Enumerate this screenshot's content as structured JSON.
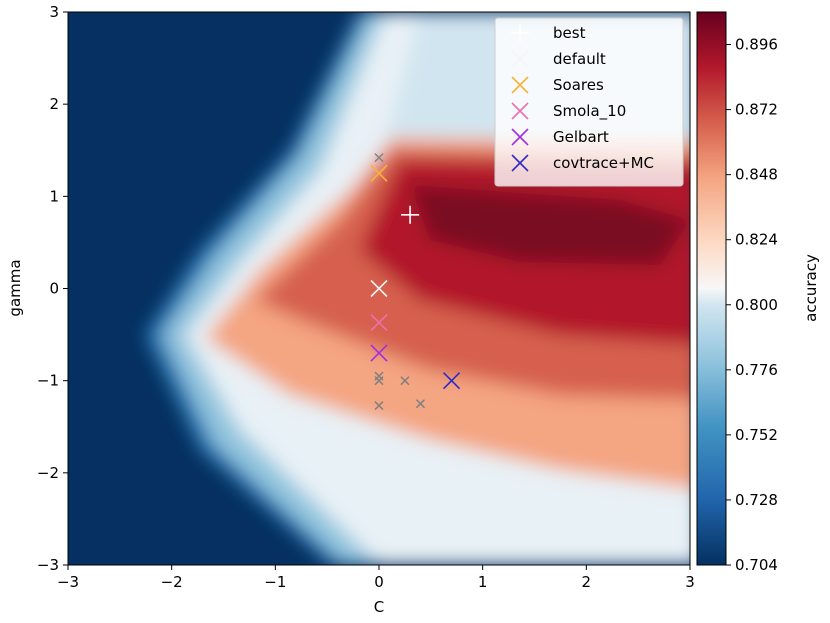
{
  "chart_data": {
    "type": "contour",
    "xlabel": "C",
    "ylabel": "gamma",
    "xlim": [
      -3,
      3
    ],
    "ylim": [
      -3,
      3
    ],
    "xticks": [
      "−3",
      "−2",
      "−1",
      "0",
      "1",
      "2",
      "3"
    ],
    "yticks": [
      "−3",
      "−2",
      "−1",
      "0",
      "1",
      "2",
      "3"
    ],
    "colorbar": {
      "label": "accuracy",
      "min": 0.704,
      "max": 0.908,
      "ticks": [
        "0.704",
        "0.728",
        "0.752",
        "0.776",
        "0.800",
        "0.824",
        "0.848",
        "0.872",
        "0.896"
      ]
    },
    "markers": [
      {
        "name": "best",
        "x": 0.3,
        "y": 0.8,
        "symbol": "+",
        "color": "#ffffff"
      },
      {
        "name": "default",
        "x": 0.0,
        "y": 0.0,
        "symbol": "x",
        "color": "#f5f5f5"
      },
      {
        "name": "Soares",
        "x": 0.0,
        "y": 1.25,
        "symbol": "x",
        "color": "#f9b233"
      },
      {
        "name": "Smola_10",
        "x": 0.0,
        "y": -0.37,
        "symbol": "x",
        "color": "#ef6fae"
      },
      {
        "name": "Gelbart",
        "x": 0.0,
        "y": -0.7,
        "symbol": "x",
        "color": "#a52be3"
      },
      {
        "name": "covtrace+MC",
        "x": 0.7,
        "y": -1.0,
        "symbol": "x",
        "color": "#2d2bc8"
      }
    ],
    "small_markers": [
      {
        "x": 0.0,
        "y": 1.42
      },
      {
        "x": 0.0,
        "y": -0.95
      },
      {
        "x": 0.0,
        "y": -1.0
      },
      {
        "x": 0.25,
        "y": -1.0
      },
      {
        "x": 0.0,
        "y": -1.27
      },
      {
        "x": 0.4,
        "y": -1.25
      }
    ]
  }
}
